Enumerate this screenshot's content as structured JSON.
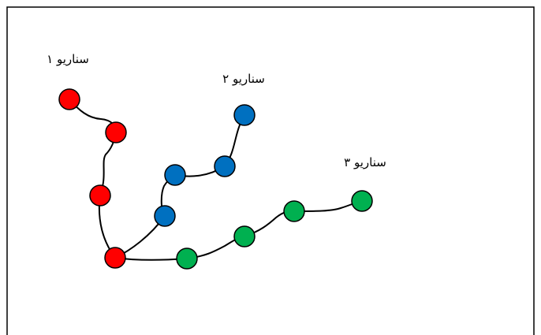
{
  "labels": {
    "scenario_1": "سناریو ۱",
    "scenario_2": "سناریو ۲",
    "scenario_3": "سناریو ۳"
  },
  "colors": {
    "scenario_1": "#ff0000",
    "scenario_2": "#0070c0",
    "scenario_3": "#00b050",
    "outline": "#000000"
  },
  "scenarios": [
    {
      "id": "scenario_1",
      "node_count": 4
    },
    {
      "id": "scenario_2",
      "node_count": 4,
      "shares_start_with": "scenario_1"
    },
    {
      "id": "scenario_3",
      "node_count": 4,
      "shares_start_with": "scenario_1"
    }
  ]
}
